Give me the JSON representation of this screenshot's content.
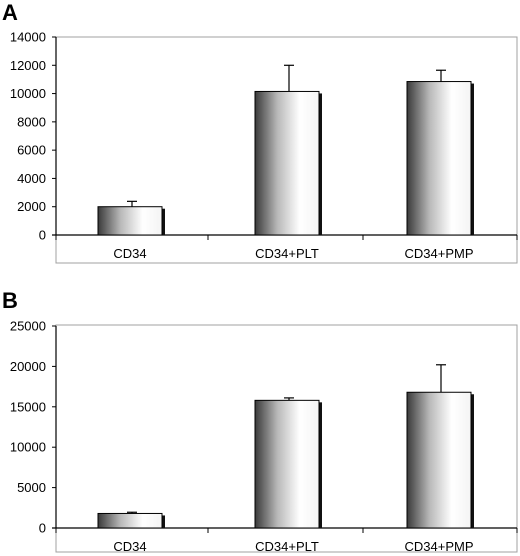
{
  "chart_data": [
    {
      "panel": "A",
      "type": "bar",
      "categories": [
        "CD34",
        "CD34+PLT",
        "CD34+PMP"
      ],
      "values": [
        2000,
        10150,
        10850
      ],
      "errors": [
        380,
        1850,
        800
      ],
      "ylim": [
        0,
        14000
      ],
      "yticks": [
        "0",
        "2000",
        "4000",
        "6000",
        "8000",
        "10000",
        "12000",
        "14000"
      ],
      "grid": false,
      "legend": "none"
    },
    {
      "panel": "B",
      "type": "bar",
      "categories": [
        "CD34",
        "CD34+PLT",
        "CD34+PMP"
      ],
      "values": [
        1800,
        15800,
        16800
      ],
      "errors": [
        150,
        300,
        3400
      ],
      "ylim": [
        0,
        25000
      ],
      "yticks": [
        "0",
        "5000",
        "10000",
        "15000",
        "20000",
        "25000"
      ],
      "grid": false,
      "legend": "none"
    }
  ],
  "style": {
    "bar_dark": "#2a2a2a",
    "bar_mid": "#9a9a9a",
    "bar_light": "#ffffff",
    "frame_color": "#a0a0a0",
    "axis_color": "#000000"
  }
}
